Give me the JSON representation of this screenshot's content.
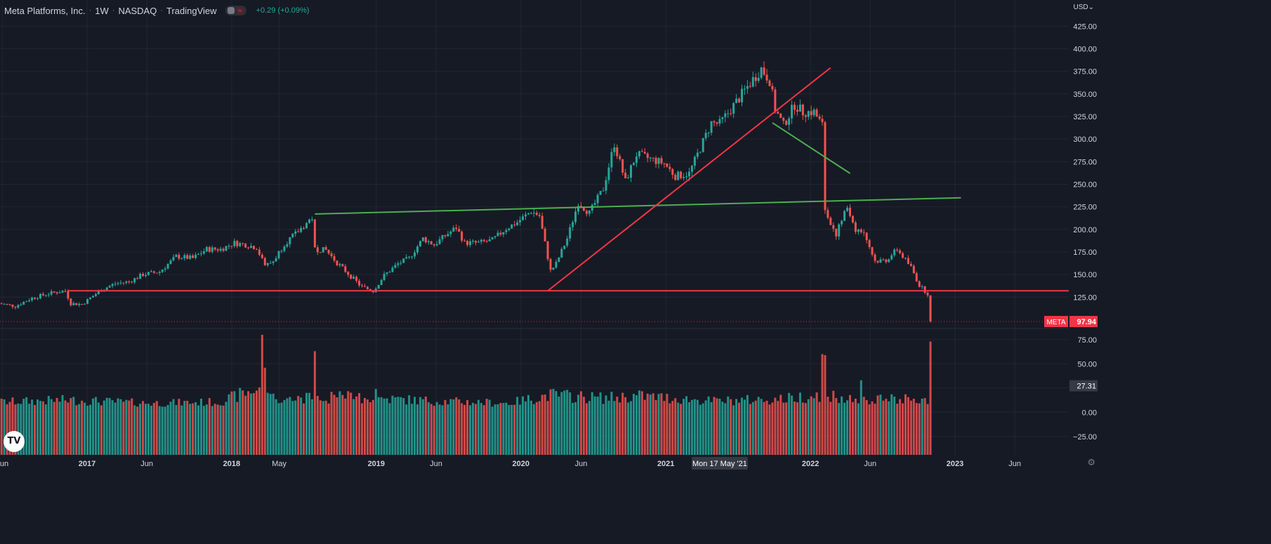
{
  "header": {
    "symbol_name": "Meta Platforms, Inc.",
    "interval": "1W",
    "exchange": "NASDAQ",
    "source": "TradingView",
    "change": "+0.29 (+0.09%)"
  },
  "currency": "USD",
  "currency_arrow": "⌄",
  "settings_icon": "gear-icon",
  "logo_text": "TV",
  "colors": {
    "background": "#161a25",
    "grid": "#232632",
    "up": "#26a69a",
    "down": "#ef5350",
    "trend_red": "#f23645",
    "trend_green": "#4caf50",
    "text": "#d1d4dc"
  },
  "chart_data": {
    "type": "candlestick",
    "title": "Meta Platforms, Inc.",
    "interval": "1W",
    "price_axis_ticks": [
      125,
      150,
      175,
      200,
      225,
      250,
      275,
      300,
      325,
      350,
      375,
      400,
      425
    ],
    "price_axis_labels": [
      "125.00",
      "150.00",
      "175.00",
      "200.00",
      "225.00",
      "250.00",
      "275.00",
      "300.00",
      "325.00",
      "350.00",
      "375.00",
      "400.00",
      "425.00"
    ],
    "volume_axis_ticks": [
      -25,
      0,
      25,
      50,
      75
    ],
    "volume_axis_labels": [
      "−25.00",
      "0.00",
      "25.00",
      "50.00",
      "75.00"
    ],
    "ylim": [
      91,
      440
    ],
    "volume_ylim": [
      -44,
      85
    ],
    "time_axis_labels": [
      {
        "label": "Jun",
        "date": "2016-06-01"
      },
      {
        "label": "2017",
        "date": "2017-01-01"
      },
      {
        "label": "Jun",
        "date": "2017-06-01"
      },
      {
        "label": "2018",
        "date": "2018-01-01"
      },
      {
        "label": "May",
        "date": "2018-05-01"
      },
      {
        "label": "2019",
        "date": "2019-01-01"
      },
      {
        "label": "Jun",
        "date": "2019-06-01"
      },
      {
        "label": "2020",
        "date": "2020-01-01"
      },
      {
        "label": "Jun",
        "date": "2020-06-01"
      },
      {
        "label": "2021",
        "date": "2021-01-01"
      },
      {
        "label": "2022",
        "date": "2022-01-01"
      },
      {
        "label": "Jun",
        "date": "2022-06-01"
      },
      {
        "label": "2023",
        "date": "2023-01-01"
      },
      {
        "label": "Jun",
        "date": "2023-06-01"
      }
    ],
    "crosshair_date_label": "Mon 17 May '21",
    "crosshair_date": "2021-05-17",
    "price_path": [
      [
        "2016-05-23",
        118
      ],
      [
        "2016-07-04",
        115
      ],
      [
        "2016-08-15",
        124
      ],
      [
        "2016-09-26",
        129
      ],
      [
        "2016-11-07",
        132
      ],
      [
        "2016-11-21",
        118
      ],
      [
        "2016-12-19",
        117
      ],
      [
        "2017-01-09",
        124
      ],
      [
        "2017-02-06",
        133
      ],
      [
        "2017-03-13",
        140
      ],
      [
        "2017-04-17",
        142
      ],
      [
        "2017-05-22",
        150
      ],
      [
        "2017-07-03",
        153
      ],
      [
        "2017-08-14",
        170
      ],
      [
        "2017-09-25",
        168
      ],
      [
        "2017-10-30",
        178
      ],
      [
        "2017-12-04",
        178
      ],
      [
        "2018-01-08",
        185
      ],
      [
        "2018-02-05",
        183
      ],
      [
        "2018-03-05",
        180
      ],
      [
        "2018-03-26",
        159
      ],
      [
        "2018-04-16",
        165
      ],
      [
        "2018-05-14",
        184
      ],
      [
        "2018-06-11",
        195
      ],
      [
        "2018-07-23",
        213
      ],
      [
        "2018-07-30",
        178
      ],
      [
        "2018-08-27",
        177
      ],
      [
        "2018-09-24",
        163
      ],
      [
        "2018-10-29",
        148
      ],
      [
        "2018-11-26",
        136
      ],
      [
        "2018-12-24",
        132
      ],
      [
        "2019-01-21",
        149
      ],
      [
        "2019-02-25",
        162
      ],
      [
        "2019-03-25",
        168
      ],
      [
        "2019-04-29",
        190
      ],
      [
        "2019-05-27",
        183
      ],
      [
        "2019-06-24",
        193
      ],
      [
        "2019-07-22",
        202
      ],
      [
        "2019-08-12",
        185
      ],
      [
        "2019-09-16",
        185
      ],
      [
        "2019-10-21",
        188
      ],
      [
        "2019-11-25",
        201
      ],
      [
        "2019-12-23",
        208
      ],
      [
        "2020-01-27",
        220
      ],
      [
        "2020-02-17",
        215
      ],
      [
        "2020-03-16",
        154
      ],
      [
        "2020-03-30",
        162
      ],
      [
        "2020-04-27",
        190
      ],
      [
        "2020-05-25",
        230
      ],
      [
        "2020-06-22",
        218
      ],
      [
        "2020-07-27",
        245
      ],
      [
        "2020-08-24",
        295
      ],
      [
        "2020-09-21",
        253
      ],
      [
        "2020-10-19",
        283
      ],
      [
        "2020-11-23",
        278
      ],
      [
        "2020-12-28",
        273
      ],
      [
        "2021-01-25",
        259
      ],
      [
        "2021-03-01",
        262
      ],
      [
        "2021-04-26",
        318
      ],
      [
        "2021-05-17",
        317
      ],
      [
        "2021-06-21",
        337
      ],
      [
        "2021-07-26",
        358
      ],
      [
        "2021-08-30",
        378
      ],
      [
        "2021-09-20",
        365
      ],
      [
        "2021-10-04",
        333
      ],
      [
        "2021-10-25",
        315
      ],
      [
        "2021-11-22",
        338
      ],
      [
        "2021-12-13",
        330
      ],
      [
        "2022-01-10",
        330
      ],
      [
        "2022-01-31",
        315
      ],
      [
        "2022-02-07",
        220
      ],
      [
        "2022-03-07",
        195
      ],
      [
        "2022-04-04",
        225
      ],
      [
        "2022-04-25",
        200
      ],
      [
        "2022-05-16",
        197
      ],
      [
        "2022-06-13",
        165
      ],
      [
        "2022-07-11",
        166
      ],
      [
        "2022-08-08",
        178
      ],
      [
        "2022-09-12",
        158
      ],
      [
        "2022-10-03",
        138
      ],
      [
        "2022-10-24",
        129
      ],
      [
        "2022-10-31",
        97.94
      ]
    ],
    "volume_path": [
      [
        "2016-05-23",
        10
      ],
      [
        "2016-11-14",
        12
      ],
      [
        "2017-06-01",
        9
      ],
      [
        "2017-12-01",
        10
      ],
      [
        "2018-03-19",
        25
      ],
      [
        "2018-04-30",
        11
      ],
      [
        "2018-07-23",
        14
      ],
      [
        "2018-10-29",
        15
      ],
      [
        "2019-06-01",
        11
      ],
      [
        "2019-12-01",
        9
      ],
      [
        "2020-03-16",
        17
      ],
      [
        "2020-07-27",
        14
      ],
      [
        "2020-10-26",
        16
      ],
      [
        "2021-05-01",
        11
      ],
      [
        "2021-10-25",
        13
      ],
      [
        "2022-02-07",
        18
      ],
      [
        "2022-05-16",
        12
      ],
      [
        "2022-10-24",
        13
      ]
    ],
    "volume_spikes": [
      {
        "date": "2018-03-19",
        "value": 80,
        "up": false
      },
      {
        "date": "2018-03-26",
        "value": 46,
        "up": false
      },
      {
        "date": "2018-07-30",
        "value": 63,
        "up": false
      },
      {
        "date": "2018-12-31",
        "value": 24,
        "up": true
      },
      {
        "date": "2022-02-07",
        "value": 59,
        "up": false
      },
      {
        "date": "2022-01-31",
        "value": 60,
        "up": false
      },
      {
        "date": "2022-05-09",
        "value": 33,
        "up": true
      },
      {
        "date": "2022-10-31",
        "value": 73,
        "up": false
      }
    ],
    "trendlines": [
      {
        "color": "red",
        "from": [
          "2016-11-14",
          132
        ],
        "to": [
          "2023-12-31",
          132
        ]
      },
      {
        "color": "green",
        "from": [
          "2018-07-30",
          217
        ],
        "to": [
          "2023-01-16",
          235
        ]
      },
      {
        "color": "red",
        "from": [
          "2020-03-09",
          132
        ],
        "to": [
          "2022-02-21",
          379
        ]
      },
      {
        "color": "green",
        "from": [
          "2021-09-27",
          318
        ],
        "to": [
          "2022-04-11",
          262
        ]
      }
    ],
    "last_price": {
      "symbol": "META",
      "value": "97.94",
      "price": 97.94
    },
    "volume_marker": {
      "value": "27.31",
      "price": 27.31
    }
  }
}
